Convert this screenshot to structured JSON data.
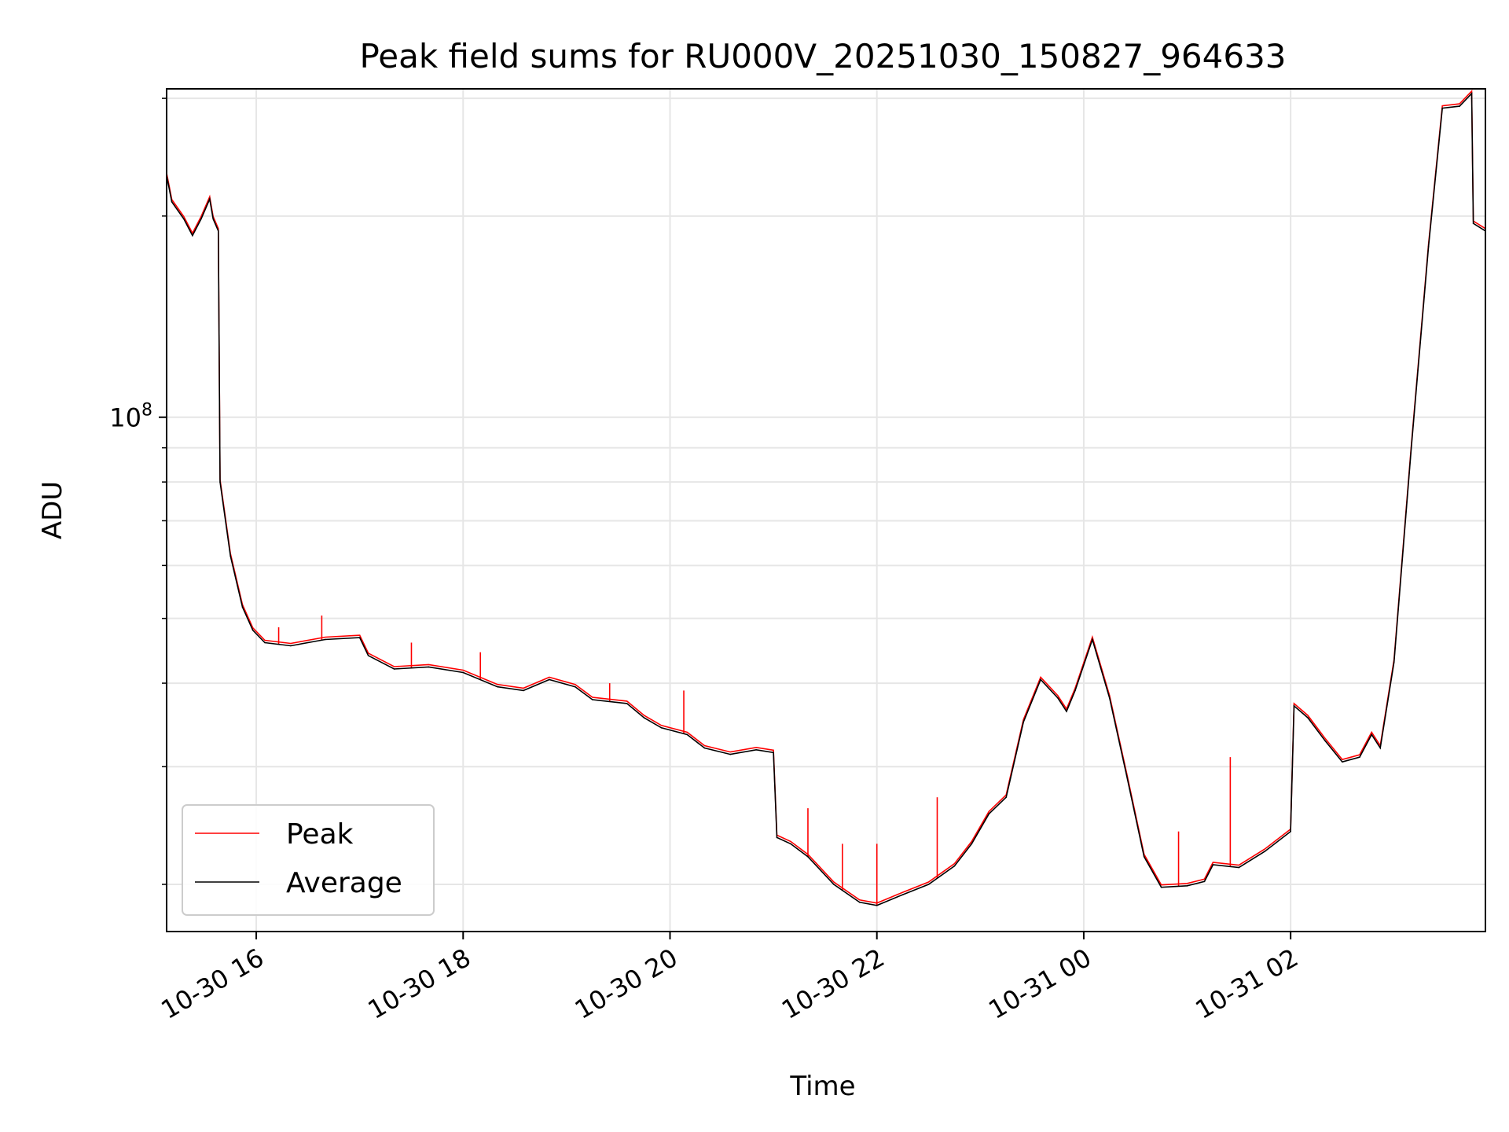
{
  "chart_data": {
    "type": "line",
    "title": "Peak field sums for RU000V_20251030_150827_964633",
    "xlabel": "Time",
    "ylabel": "ADU",
    "yscale": "log",
    "xlim": [
      "2025-10-30 15:08",
      "2025-10-31 03:53"
    ],
    "ylim": [
      17000000,
      310000000
    ],
    "x_ticks": [
      "10-30 16",
      "10-30 18",
      "10-30 20",
      "10-30 22",
      "10-31 00",
      "10-31 02"
    ],
    "y_ticks": [
      {
        "base": "10",
        "exp": "8"
      }
    ],
    "grid": true,
    "legend": {
      "position": "lower-left",
      "entries": [
        "Peak",
        "Average"
      ]
    },
    "series": [
      {
        "name": "Average",
        "color": "#000000",
        "points": [
          [
            "2025-10-30 15:08",
            230000000
          ],
          [
            "2025-10-30 15:11",
            210000000
          ],
          [
            "2025-10-30 15:18",
            198000000
          ],
          [
            "2025-10-30 15:23",
            187000000
          ],
          [
            "2025-10-30 15:28",
            198000000
          ],
          [
            "2025-10-30 15:33",
            212000000
          ],
          [
            "2025-10-30 15:35",
            198000000
          ],
          [
            "2025-10-30 15:38",
            190000000
          ],
          [
            "2025-10-30 15:39",
            80000000
          ],
          [
            "2025-10-30 15:45",
            62000000
          ],
          [
            "2025-10-30 15:52",
            52000000
          ],
          [
            "2025-10-30 15:58",
            48000000
          ],
          [
            "2025-10-30 16:05",
            46000000
          ],
          [
            "2025-10-30 16:20",
            45500000
          ],
          [
            "2025-10-30 16:40",
            46500000
          ],
          [
            "2025-10-30 17:00",
            46800000
          ],
          [
            "2025-10-30 17:05",
            44000000
          ],
          [
            "2025-10-30 17:20",
            42000000
          ],
          [
            "2025-10-30 17:40",
            42300000
          ],
          [
            "2025-10-30 18:00",
            41500000
          ],
          [
            "2025-10-30 18:20",
            39500000
          ],
          [
            "2025-10-30 18:35",
            39000000
          ],
          [
            "2025-10-30 18:50",
            40500000
          ],
          [
            "2025-10-30 19:05",
            39500000
          ],
          [
            "2025-10-30 19:15",
            37800000
          ],
          [
            "2025-10-30 19:35",
            37300000
          ],
          [
            "2025-10-30 19:45",
            35500000
          ],
          [
            "2025-10-30 19:55",
            34300000
          ],
          [
            "2025-10-30 20:10",
            33500000
          ],
          [
            "2025-10-30 20:20",
            32000000
          ],
          [
            "2025-10-30 20:35",
            31300000
          ],
          [
            "2025-10-30 20:50",
            31800000
          ],
          [
            "2025-10-30 21:00",
            31500000
          ],
          [
            "2025-10-30 21:02",
            23500000
          ],
          [
            "2025-10-30 21:10",
            23000000
          ],
          [
            "2025-10-30 21:20",
            22000000
          ],
          [
            "2025-10-30 21:35",
            20000000
          ],
          [
            "2025-10-30 21:50",
            18800000
          ],
          [
            "2025-10-30 22:00",
            18600000
          ],
          [
            "2025-10-30 22:15",
            19300000
          ],
          [
            "2025-10-30 22:30",
            20000000
          ],
          [
            "2025-10-30 22:45",
            21300000
          ],
          [
            "2025-10-30 22:55",
            23000000
          ],
          [
            "2025-10-30 23:05",
            25500000
          ],
          [
            "2025-10-30 23:15",
            27000000
          ],
          [
            "2025-10-30 23:25",
            35000000
          ],
          [
            "2025-10-30 23:35",
            40500000
          ],
          [
            "2025-10-30 23:45",
            38000000
          ],
          [
            "2025-10-30 23:50",
            36300000
          ],
          [
            "2025-10-30 23:55",
            39000000
          ],
          [
            "2025-10-31 00:05",
            46500000
          ],
          [
            "2025-10-31 00:15",
            38000000
          ],
          [
            "2025-10-31 00:25",
            29000000
          ],
          [
            "2025-10-31 00:35",
            22000000
          ],
          [
            "2025-10-31 00:45",
            19800000
          ],
          [
            "2025-10-31 01:00",
            19900000
          ],
          [
            "2025-10-31 01:10",
            20200000
          ],
          [
            "2025-10-31 01:15",
            21400000
          ],
          [
            "2025-10-31 01:30",
            21200000
          ],
          [
            "2025-10-31 01:45",
            22400000
          ],
          [
            "2025-10-31 02:00",
            24000000
          ],
          [
            "2025-10-31 02:02",
            37000000
          ],
          [
            "2025-10-31 02:10",
            35500000
          ],
          [
            "2025-10-31 02:20",
            32800000
          ],
          [
            "2025-10-31 02:30",
            30500000
          ],
          [
            "2025-10-31 02:40",
            31000000
          ],
          [
            "2025-10-31 02:47",
            33500000
          ],
          [
            "2025-10-31 02:52",
            32000000
          ],
          [
            "2025-10-31 03:00",
            43000000
          ],
          [
            "2025-10-31 03:10",
            90000000
          ],
          [
            "2025-10-31 03:20",
            180000000
          ],
          [
            "2025-10-31 03:28",
            290000000
          ],
          [
            "2025-10-31 03:38",
            292000000
          ],
          [
            "2025-10-31 03:45",
            305000000
          ],
          [
            "2025-10-31 03:46",
            195000000
          ],
          [
            "2025-10-31 03:53",
            190000000
          ]
        ]
      },
      {
        "name": "Peak",
        "color": "#ff0000",
        "spikes": [
          [
            "2025-10-30 16:13",
            48500000
          ],
          [
            "2025-10-30 16:38",
            50500000
          ],
          [
            "2025-10-30 17:30",
            46000000
          ],
          [
            "2025-10-30 18:10",
            44500000
          ],
          [
            "2025-10-30 19:25",
            40000000
          ],
          [
            "2025-10-30 20:08",
            39000000
          ],
          [
            "2025-10-30 21:20",
            26000000
          ],
          [
            "2025-10-30 21:40",
            23000000
          ],
          [
            "2025-10-30 22:00",
            23000000
          ],
          [
            "2025-10-30 22:35",
            27000000
          ],
          [
            "2025-10-31 00:55",
            24000000
          ],
          [
            "2025-10-31 01:25",
            31000000
          ]
        ]
      }
    ]
  }
}
